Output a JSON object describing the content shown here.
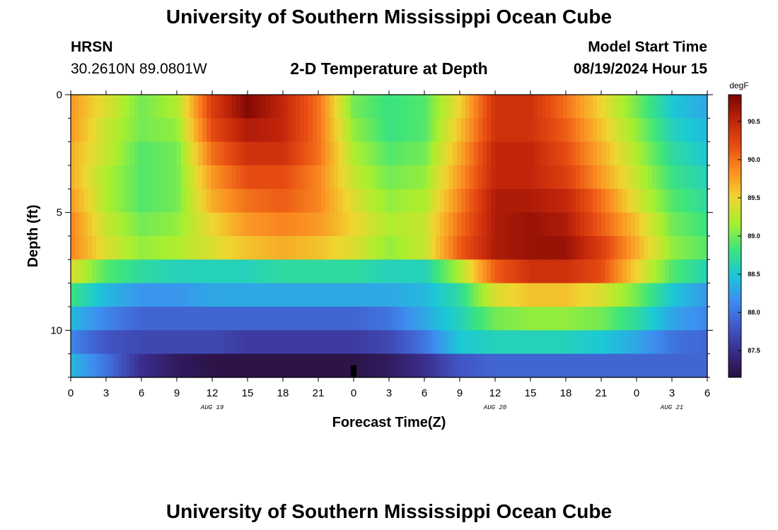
{
  "page": {
    "title_top": "University of Southern Mississippi Ocean Cube",
    "title_bottom": "University of Southern Mississippi Ocean Cube",
    "station_code": "HRSN",
    "station_coords": "30.2610N  89.0801W",
    "plot_title": "2-D Temperature at Depth",
    "model_start_label": "Model Start Time",
    "model_start_value": "08/19/2024 Hour 15"
  },
  "chart_data": {
    "type": "heatmap",
    "title": "2-D Temperature at Depth",
    "xlabel": "Forecast Time(Z)",
    "ylabel": "Depth (ft)",
    "x_range_hours": [
      0,
      54
    ],
    "y_range_ft": [
      0,
      12
    ],
    "x_tick_labels": [
      "0",
      "3",
      "6",
      "9",
      "12",
      "15",
      "18",
      "21",
      "0",
      "3",
      "6",
      "9",
      "12",
      "15",
      "18",
      "21",
      "0",
      "3",
      "6"
    ],
    "y_ticks": [
      0,
      5,
      10
    ],
    "date_labels": [
      {
        "text": "AUG 19",
        "hour": 12
      },
      {
        "text": "AUG 20",
        "hour": 36
      },
      {
        "text": "AUG 21",
        "hour": 51
      }
    ],
    "current_time_hour": 24,
    "colorbar": {
      "unit": "degF",
      "min": 87.15,
      "max": 90.85,
      "ticks": [
        "87.5",
        "88.0",
        "88.5",
        "89.0",
        "89.5",
        "90.0",
        "90.5"
      ],
      "colors": [
        "#2a0f3d",
        "#3a2c8a",
        "#4258c8",
        "#3d8ff0",
        "#1bc8d6",
        "#3ee57a",
        "#a8ef2f",
        "#f0d530",
        "#fb9022",
        "#e84d12",
        "#c0240a",
        "#7a0403"
      ]
    },
    "depth_levels_ft": [
      0.5,
      1.5,
      2.5,
      3.5,
      4.5,
      5.5,
      6.5,
      7.5,
      8.5,
      9.5,
      10.5,
      11.5
    ],
    "time_hours": [
      0,
      3,
      6,
      9,
      12,
      15,
      18,
      21,
      24,
      27,
      30,
      33,
      36,
      39,
      42,
      45,
      48,
      51,
      54
    ],
    "values_degF": [
      [
        89.8,
        89.4,
        89.0,
        89.2,
        90.3,
        90.8,
        90.5,
        90.0,
        89.0,
        88.8,
        88.9,
        89.5,
        90.4,
        90.4,
        90.0,
        89.5,
        89.0,
        88.5,
        88.3
      ],
      [
        89.8,
        89.3,
        89.0,
        89.1,
        90.2,
        90.6,
        90.5,
        90.0,
        89.1,
        88.8,
        88.9,
        89.6,
        90.4,
        90.4,
        90.1,
        89.6,
        89.1,
        88.6,
        88.4
      ],
      [
        89.7,
        89.3,
        88.9,
        89.0,
        90.0,
        90.4,
        90.4,
        90.0,
        89.2,
        88.9,
        89.0,
        89.7,
        90.5,
        90.5,
        90.2,
        89.7,
        89.2,
        88.7,
        88.5
      ],
      [
        89.7,
        89.2,
        88.9,
        89.0,
        89.8,
        90.2,
        90.2,
        89.9,
        89.3,
        89.0,
        89.1,
        89.8,
        90.5,
        90.5,
        90.3,
        89.8,
        89.3,
        88.8,
        88.6
      ],
      [
        89.8,
        89.2,
        88.9,
        89.0,
        89.7,
        90.0,
        90.1,
        89.9,
        89.4,
        89.1,
        89.2,
        89.9,
        90.6,
        90.6,
        90.5,
        90.0,
        89.4,
        88.9,
        88.7
      ],
      [
        89.9,
        89.3,
        89.0,
        89.1,
        89.5,
        89.8,
        89.9,
        89.8,
        89.5,
        89.2,
        89.3,
        90.0,
        90.6,
        90.7,
        90.6,
        90.1,
        89.6,
        89.0,
        88.8
      ],
      [
        89.9,
        89.4,
        89.1,
        89.2,
        89.4,
        89.6,
        89.7,
        89.6,
        89.4,
        89.1,
        89.3,
        90.1,
        90.6,
        90.7,
        90.7,
        90.3,
        89.7,
        89.1,
        88.9
      ],
      [
        89.4,
        88.9,
        88.7,
        88.6,
        88.6,
        88.6,
        88.7,
        88.7,
        88.7,
        88.6,
        88.6,
        89.2,
        90.1,
        90.4,
        90.4,
        90.2,
        89.5,
        88.9,
        88.6
      ],
      [
        88.8,
        88.4,
        88.2,
        88.2,
        88.3,
        88.3,
        88.3,
        88.3,
        88.3,
        88.3,
        88.4,
        88.7,
        89.4,
        89.6,
        89.6,
        89.4,
        89.0,
        88.5,
        88.2
      ],
      [
        88.4,
        88.1,
        87.9,
        87.9,
        87.9,
        87.9,
        87.9,
        87.9,
        87.9,
        88.0,
        88.3,
        88.6,
        89.0,
        89.1,
        89.1,
        89.0,
        88.7,
        88.3,
        88.1
      ],
      [
        88.1,
        87.8,
        87.7,
        87.7,
        87.7,
        87.6,
        87.6,
        87.6,
        87.6,
        87.7,
        88.0,
        88.5,
        88.6,
        88.6,
        88.6,
        88.5,
        88.3,
        88.0,
        87.9
      ],
      [
        88.4,
        88.0,
        87.5,
        87.3,
        87.2,
        87.2,
        87.2,
        87.2,
        87.2,
        87.3,
        87.5,
        87.8,
        87.9,
        87.9,
        87.9,
        87.9,
        87.9,
        87.9,
        87.9
      ]
    ]
  }
}
